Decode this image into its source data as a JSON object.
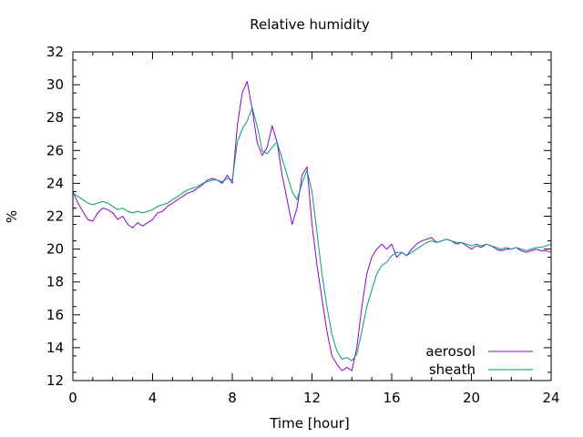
{
  "chart_data": {
    "type": "line",
    "title": "Relative humidity",
    "xlabel": "Time [hour]",
    "ylabel": "%",
    "xlim": [
      0,
      24
    ],
    "ylim": [
      12,
      32
    ],
    "xticks": [
      0,
      4,
      8,
      12,
      16,
      20,
      24
    ],
    "yticks": [
      12,
      14,
      16,
      18,
      20,
      22,
      24,
      26,
      28,
      30,
      32
    ],
    "grid": false,
    "legend_position": "bottom-right",
    "series": [
      {
        "name": "aerosol",
        "color": "#9400d3",
        "x": [
          0,
          0.25,
          0.5,
          0.75,
          1,
          1.25,
          1.5,
          1.75,
          2,
          2.25,
          2.5,
          2.75,
          3,
          3.25,
          3.5,
          3.75,
          4,
          4.25,
          4.5,
          4.75,
          5,
          5.25,
          5.5,
          5.75,
          6,
          6.25,
          6.5,
          6.75,
          7,
          7.25,
          7.5,
          7.75,
          8,
          8.25,
          8.5,
          8.75,
          9,
          9.25,
          9.5,
          9.75,
          10,
          10.25,
          10.5,
          10.75,
          11,
          11.25,
          11.5,
          11.75,
          12,
          12.25,
          12.5,
          12.75,
          13,
          13.25,
          13.5,
          13.75,
          14,
          14.25,
          14.5,
          14.75,
          15,
          15.25,
          15.5,
          15.75,
          16,
          16.25,
          16.5,
          16.75,
          17,
          17.25,
          17.5,
          17.75,
          18,
          18.25,
          18.5,
          18.75,
          19,
          19.25,
          19.5,
          19.75,
          20,
          20.25,
          20.5,
          20.75,
          21,
          21.25,
          21.5,
          21.75,
          22,
          22.25,
          22.5,
          22.75,
          23,
          23.25,
          23.5,
          23.75,
          24
        ],
        "y": [
          23.5,
          22.8,
          22.3,
          21.8,
          21.7,
          22.2,
          22.5,
          22.4,
          22.2,
          21.8,
          22.0,
          21.5,
          21.3,
          21.6,
          21.4,
          21.6,
          21.8,
          22.2,
          22.3,
          22.6,
          22.8,
          23.0,
          23.2,
          23.4,
          23.5,
          23.7,
          23.9,
          24.2,
          24.3,
          24.2,
          24.0,
          24.5,
          24.0,
          27.5,
          29.5,
          30.2,
          28.5,
          26.5,
          25.7,
          26.2,
          27.5,
          26.5,
          24.5,
          23.0,
          21.5,
          22.5,
          24.5,
          25.0,
          21.5,
          19.0,
          17.0,
          15.0,
          13.5,
          13.0,
          12.6,
          12.8,
          12.6,
          14.0,
          16.5,
          18.5,
          19.5,
          20.0,
          20.3,
          20.0,
          20.3,
          19.5,
          19.8,
          19.6,
          20.0,
          20.3,
          20.5,
          20.6,
          20.7,
          20.4,
          20.5,
          20.6,
          20.5,
          20.3,
          20.4,
          20.2,
          20.0,
          20.2,
          20.1,
          20.3,
          20.2,
          20.0,
          19.9,
          20.0,
          20.0,
          20.1,
          19.9,
          19.8,
          19.9,
          20.0,
          19.9,
          19.9,
          19.8
        ]
      },
      {
        "name": "sheath",
        "color": "#009e73",
        "x": [
          0,
          0.25,
          0.5,
          0.75,
          1,
          1.25,
          1.5,
          1.75,
          2,
          2.25,
          2.5,
          2.75,
          3,
          3.25,
          3.5,
          3.75,
          4,
          4.25,
          4.5,
          4.75,
          5,
          5.25,
          5.5,
          5.75,
          6,
          6.25,
          6.5,
          6.75,
          7,
          7.25,
          7.5,
          7.75,
          8,
          8.25,
          8.5,
          8.75,
          9,
          9.25,
          9.5,
          9.75,
          10,
          10.25,
          10.5,
          10.75,
          11,
          11.25,
          11.5,
          11.75,
          12,
          12.25,
          12.5,
          12.75,
          13,
          13.25,
          13.5,
          13.75,
          14,
          14.25,
          14.5,
          14.75,
          15,
          15.25,
          15.5,
          15.75,
          16,
          16.25,
          16.5,
          16.75,
          17,
          17.25,
          17.5,
          17.75,
          18,
          18.25,
          18.5,
          18.75,
          19,
          19.25,
          19.5,
          19.75,
          20,
          20.25,
          20.5,
          20.75,
          21,
          21.25,
          21.5,
          21.75,
          22,
          22.25,
          22.5,
          22.75,
          23,
          23.25,
          23.5,
          23.75,
          24
        ],
        "y": [
          23.4,
          23.2,
          23.0,
          22.8,
          22.7,
          22.8,
          22.9,
          22.8,
          22.6,
          22.4,
          22.5,
          22.3,
          22.2,
          22.3,
          22.2,
          22.3,
          22.4,
          22.6,
          22.7,
          22.8,
          23.0,
          23.2,
          23.4,
          23.6,
          23.7,
          23.8,
          24.0,
          24.1,
          24.2,
          24.2,
          24.1,
          24.3,
          24.2,
          26.5,
          27.3,
          27.8,
          28.6,
          27.5,
          26.0,
          25.8,
          26.2,
          26.5,
          25.5,
          24.5,
          23.5,
          23.0,
          24.0,
          24.8,
          23.5,
          21.0,
          18.5,
          16.5,
          14.8,
          13.8,
          13.3,
          13.4,
          13.2,
          13.6,
          15.0,
          16.5,
          17.5,
          18.5,
          19.0,
          19.2,
          19.6,
          19.8,
          19.8,
          19.6,
          19.8,
          20.0,
          20.2,
          20.4,
          20.5,
          20.4,
          20.5,
          20.6,
          20.5,
          20.4,
          20.4,
          20.3,
          20.2,
          20.3,
          20.2,
          20.3,
          20.2,
          20.1,
          20.0,
          20.1,
          20.0,
          20.1,
          20.0,
          19.9,
          20.0,
          20.1,
          20.1,
          20.2,
          20.3
        ]
      }
    ]
  }
}
